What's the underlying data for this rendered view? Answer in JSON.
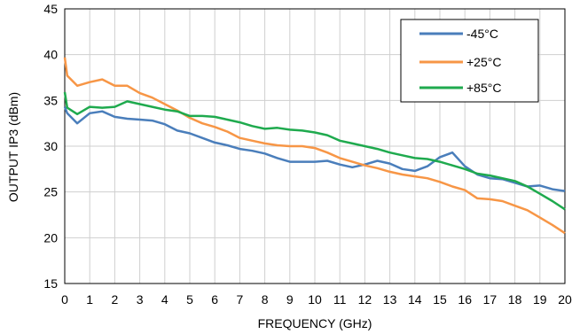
{
  "chart_data": {
    "type": "line",
    "xlabel": "FREQUENCY (GHz)",
    "ylabel": "OUTPUT IP3 (dBm)",
    "xlim": [
      0,
      20
    ],
    "ylim": [
      15,
      45
    ],
    "xticks": [
      0,
      1,
      2,
      3,
      4,
      5,
      6,
      7,
      8,
      9,
      10,
      11,
      12,
      13,
      14,
      15,
      16,
      17,
      18,
      19,
      20
    ],
    "yticks": [
      15,
      20,
      25,
      30,
      35,
      40,
      45
    ],
    "grid": true,
    "legend_position": "top-right",
    "series": [
      {
        "name": "-45°C",
        "color": "#4a7ebb",
        "x": [
          0,
          0.1,
          0.5,
          1,
          1.5,
          2,
          2.5,
          3,
          3.5,
          4,
          4.5,
          5,
          5.5,
          6,
          6.5,
          7,
          7.5,
          8,
          8.5,
          9,
          9.5,
          10,
          10.5,
          11,
          11.5,
          12,
          12.5,
          13,
          13.5,
          14,
          14.5,
          15,
          15.5,
          16,
          16.5,
          17,
          17.5,
          18,
          18.5,
          19,
          19.5,
          20
        ],
        "values": [
          34.3,
          33.6,
          32.5,
          33.6,
          33.8,
          33.2,
          33.0,
          32.9,
          32.8,
          32.4,
          31.7,
          31.4,
          30.9,
          30.4,
          30.1,
          29.7,
          29.5,
          29.2,
          28.7,
          28.3,
          28.3,
          28.3,
          28.4,
          28.0,
          27.7,
          28.0,
          28.4,
          28.1,
          27.5,
          27.3,
          27.8,
          28.8,
          29.3,
          27.8,
          26.9,
          26.5,
          26.4,
          26.0,
          25.6,
          25.7,
          25.3,
          25.1
        ]
      },
      {
        "name": "+25°C",
        "color": "#f79646",
        "x": [
          0,
          0.1,
          0.5,
          1,
          1.5,
          2,
          2.5,
          3,
          3.5,
          4,
          4.5,
          5,
          5.5,
          6,
          6.5,
          7,
          7.5,
          8,
          8.5,
          9,
          9.5,
          10,
          10.5,
          11,
          11.5,
          12,
          12.5,
          13,
          13.5,
          14,
          14.5,
          15,
          15.5,
          16,
          16.5,
          17,
          17.5,
          18,
          18.5,
          19,
          19.5,
          20
        ],
        "values": [
          39.7,
          37.7,
          36.6,
          37.0,
          37.3,
          36.6,
          36.6,
          35.8,
          35.3,
          34.6,
          33.9,
          33.1,
          32.5,
          32.1,
          31.6,
          30.9,
          30.6,
          30.3,
          30.1,
          30.0,
          30.0,
          29.8,
          29.3,
          28.7,
          28.3,
          27.9,
          27.6,
          27.2,
          26.9,
          26.7,
          26.5,
          26.1,
          25.6,
          25.2,
          24.3,
          24.2,
          24.0,
          23.5,
          23.0,
          22.2,
          21.4,
          20.5
        ]
      },
      {
        "name": "+85°C",
        "color": "#1faa4e",
        "x": [
          0,
          0.1,
          0.5,
          1,
          1.5,
          2,
          2.5,
          3,
          3.5,
          4,
          4.5,
          5,
          5.5,
          6,
          6.5,
          7,
          7.5,
          8,
          8.5,
          9,
          9.5,
          10,
          10.5,
          11,
          11.5,
          12,
          12.5,
          13,
          13.5,
          14,
          14.5,
          15,
          15.5,
          16,
          16.5,
          17,
          17.5,
          18,
          18.5,
          19,
          19.5,
          20
        ],
        "values": [
          35.9,
          34.2,
          33.5,
          34.3,
          34.2,
          34.3,
          34.9,
          34.6,
          34.3,
          34.0,
          33.8,
          33.3,
          33.3,
          33.2,
          32.9,
          32.6,
          32.2,
          31.9,
          32.0,
          31.8,
          31.7,
          31.5,
          31.2,
          30.6,
          30.3,
          30.0,
          29.7,
          29.3,
          29.0,
          28.7,
          28.6,
          28.3,
          27.9,
          27.5,
          27.0,
          26.8,
          26.5,
          26.2,
          25.6,
          24.8,
          24.0,
          23.1
        ]
      }
    ]
  }
}
